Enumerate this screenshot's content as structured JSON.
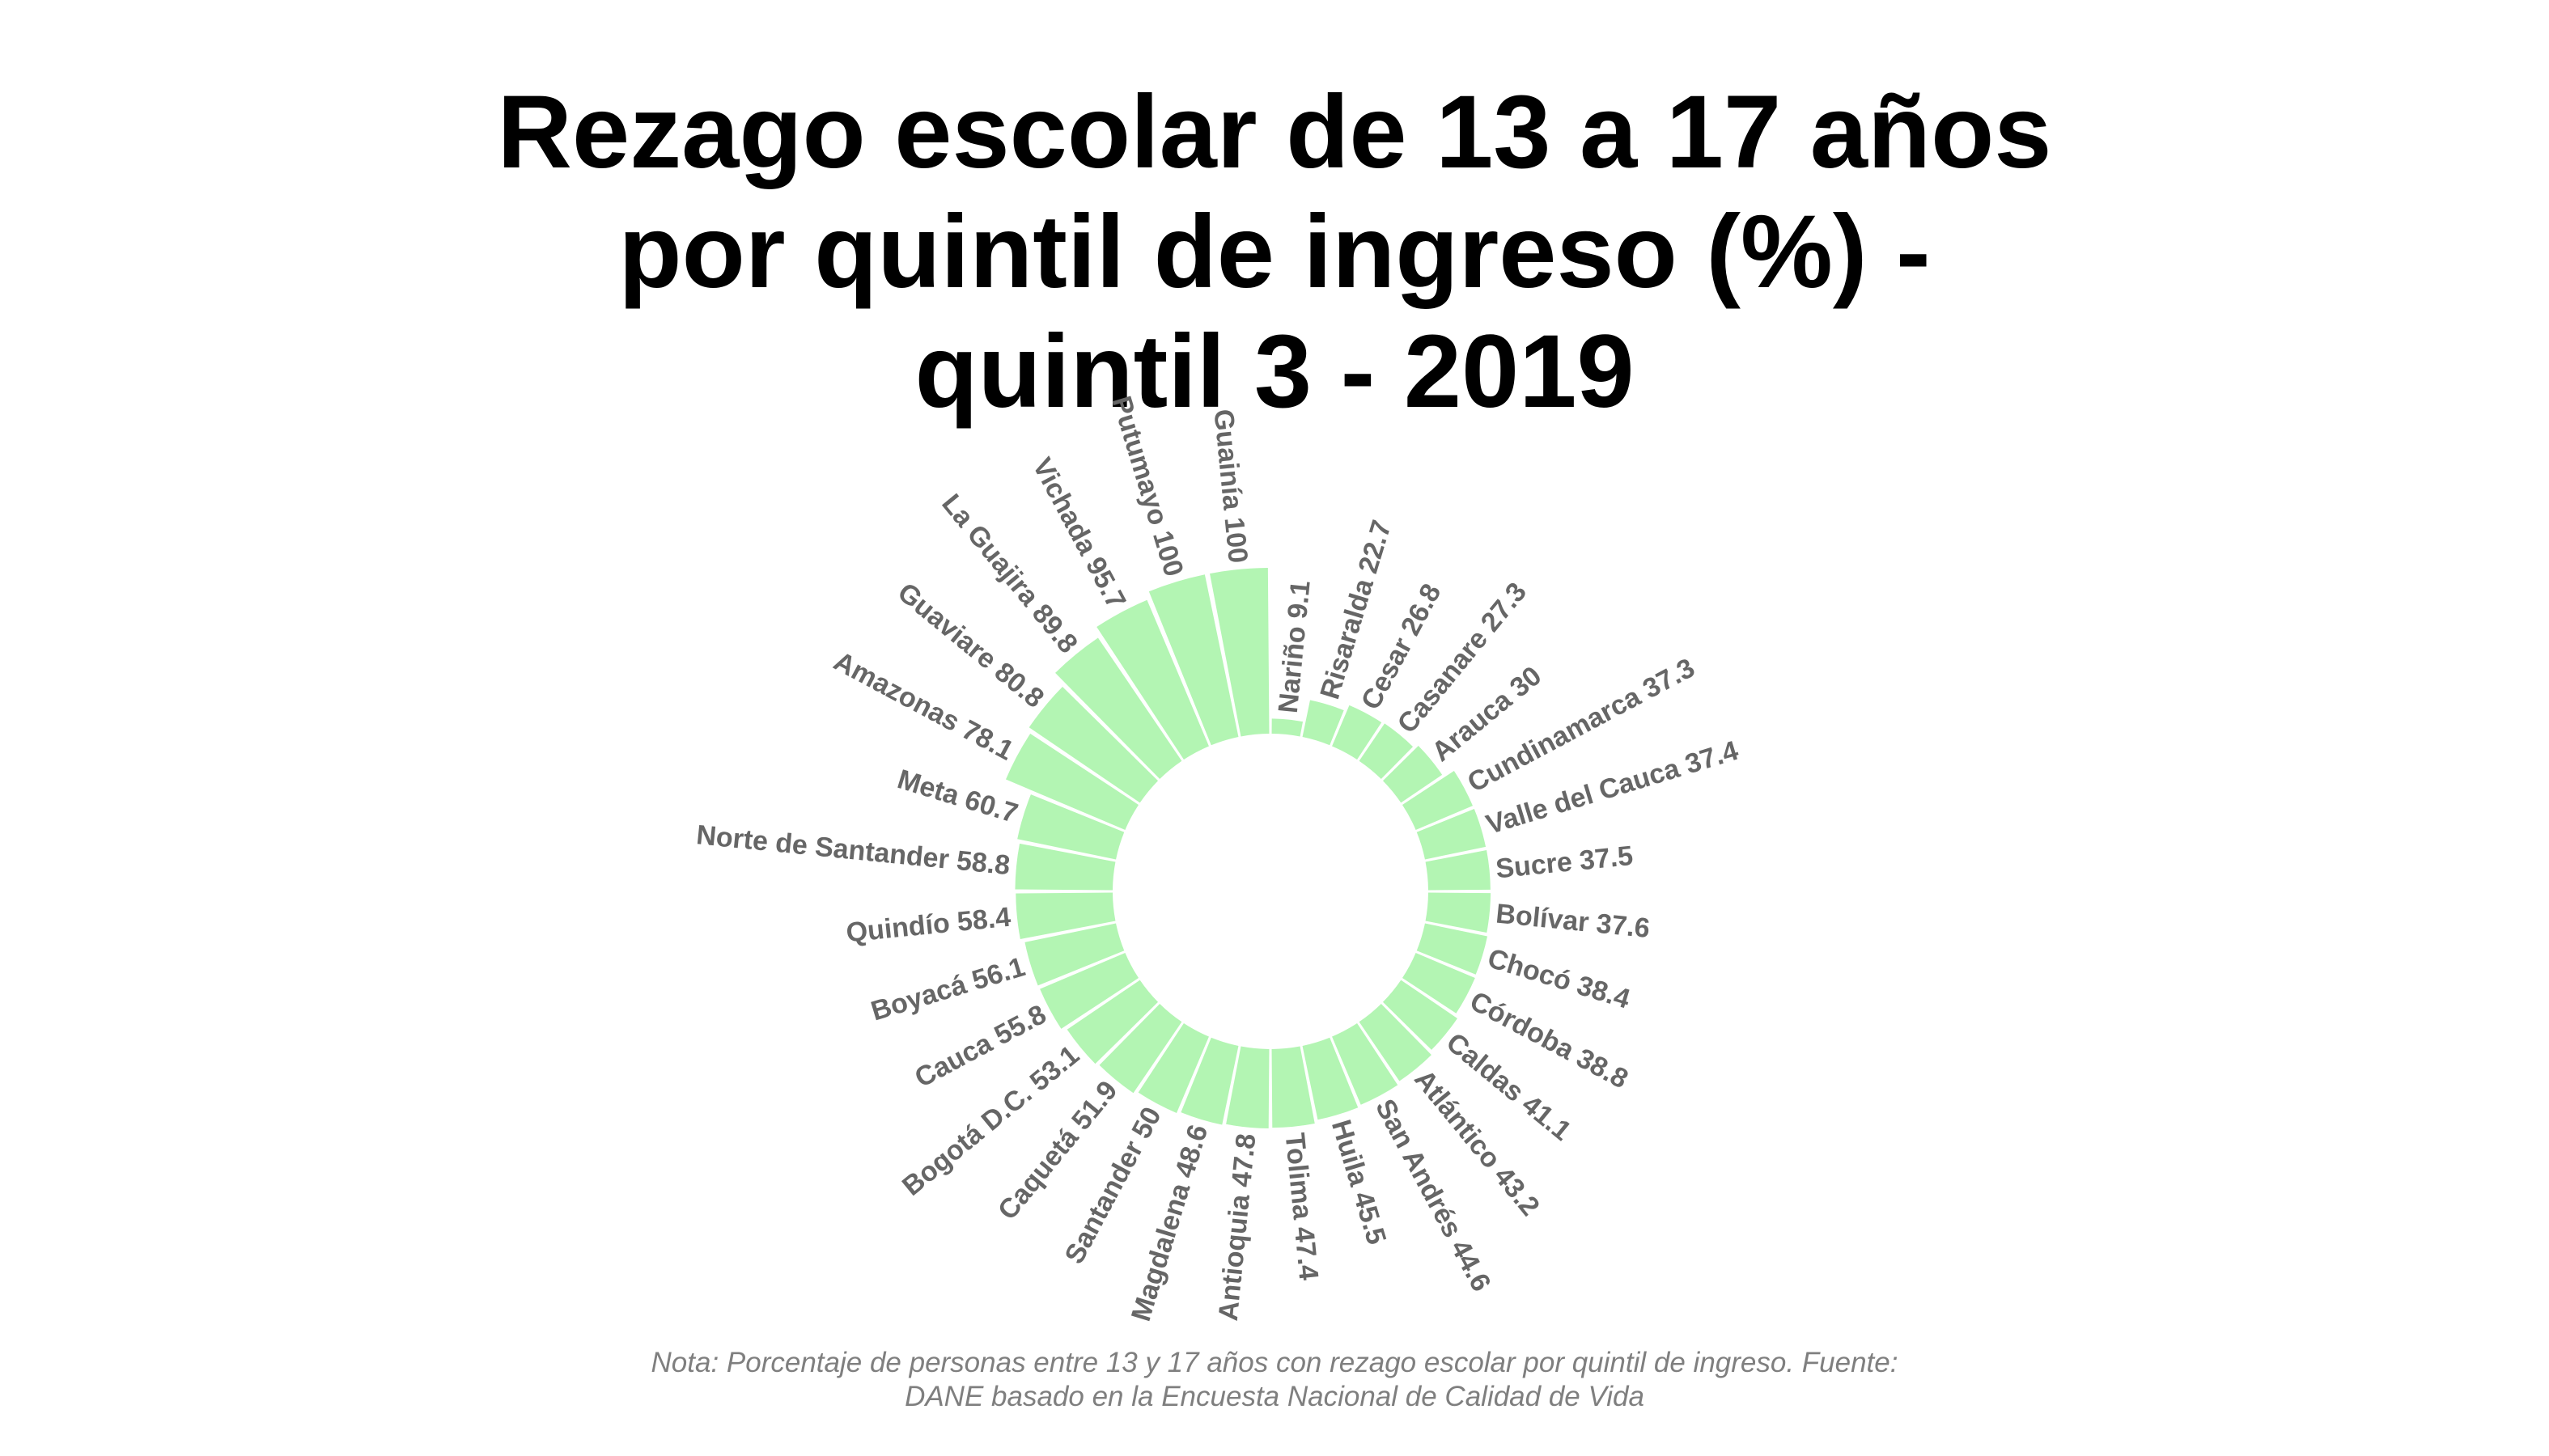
{
  "chart_data": {
    "type": "bar",
    "title_lines": [
      "Rezago escolar de 13 a 17 años",
      "por quintil de ingreso (%) -",
      "quintil 3 - 2019"
    ],
    "title": "Rezago escolar de 13 a 17 años por quintil de ingreso (%) - quintil 3 - 2019",
    "categories": [
      "Nariño",
      "Risaralda",
      "Cesar",
      "Casanare",
      "Arauca",
      "Cundinamarca",
      "Valle del Cauca",
      "Sucre",
      "Bolívar",
      "Chocó",
      "Córdoba",
      "Caldas",
      "Atlántico",
      "San Andrés",
      "Huila",
      "Tolima",
      "Antioquia",
      "Magdalena",
      "Santander",
      "Caquetá",
      "Bogotá D.C.",
      "Cauca",
      "Boyacá",
      "Quindío",
      "Norte de Santander",
      "Meta",
      "Amazonas",
      "Guaviare",
      "La Guajira",
      "Vichada",
      "Putumayo",
      "Guainía"
    ],
    "values": [
      9.1,
      22.7,
      26.8,
      27.3,
      30,
      37.3,
      37.4,
      37.5,
      37.6,
      38.4,
      38.8,
      41.1,
      43.2,
      44.6,
      45.5,
      47.4,
      47.8,
      48.6,
      50,
      51.9,
      53.1,
      55.8,
      56.1,
      58.4,
      58.8,
      60.7,
      78.1,
      80.8,
      89.8,
      95.7,
      100,
      100
    ],
    "labels": [
      "Nariño 9.1",
      "Risaralda 22.7",
      "Cesar 26.8",
      "Casanare 27.3",
      "Arauca 30",
      "Cundinamarca 37.3",
      "Valle del Cauca 37.4",
      "Sucre 37.5",
      "Bolívar 37.6",
      "Chocó 38.4",
      "Córdoba 38.8",
      "Caldas 41.1",
      "Atlántico 43.2",
      "San Andrés 44.6",
      "Huila 45.5",
      "Tolima 47.4",
      "Antioquia 47.8",
      "Magdalena 48.6",
      "Santander 50",
      "Caquetá 51.9",
      "Bogotá D.C. 53.1",
      "Cauca 55.8",
      "Boyacá 56.1",
      "Quindío 58.4",
      "Norte de Santander 58.8",
      "Meta 60.7",
      "Amazonas 78.1",
      "Guaviare 80.8",
      "La Guajira 89.8",
      "Vichada 95.7",
      "Putumayo 100",
      "Guainía 100"
    ],
    "ylim": [
      0,
      100
    ],
    "colors": {
      "bar": "#b3f5b3",
      "label": "#666666",
      "note": "#7f7f7f"
    },
    "note_lines": [
      "Nota: Porcentaje de personas entre 13 y 17 años con rezago escolar por quintil de ingreso. Fuente:",
      "DANE basado en la Encuesta Nacional de Calidad de Vida"
    ]
  }
}
